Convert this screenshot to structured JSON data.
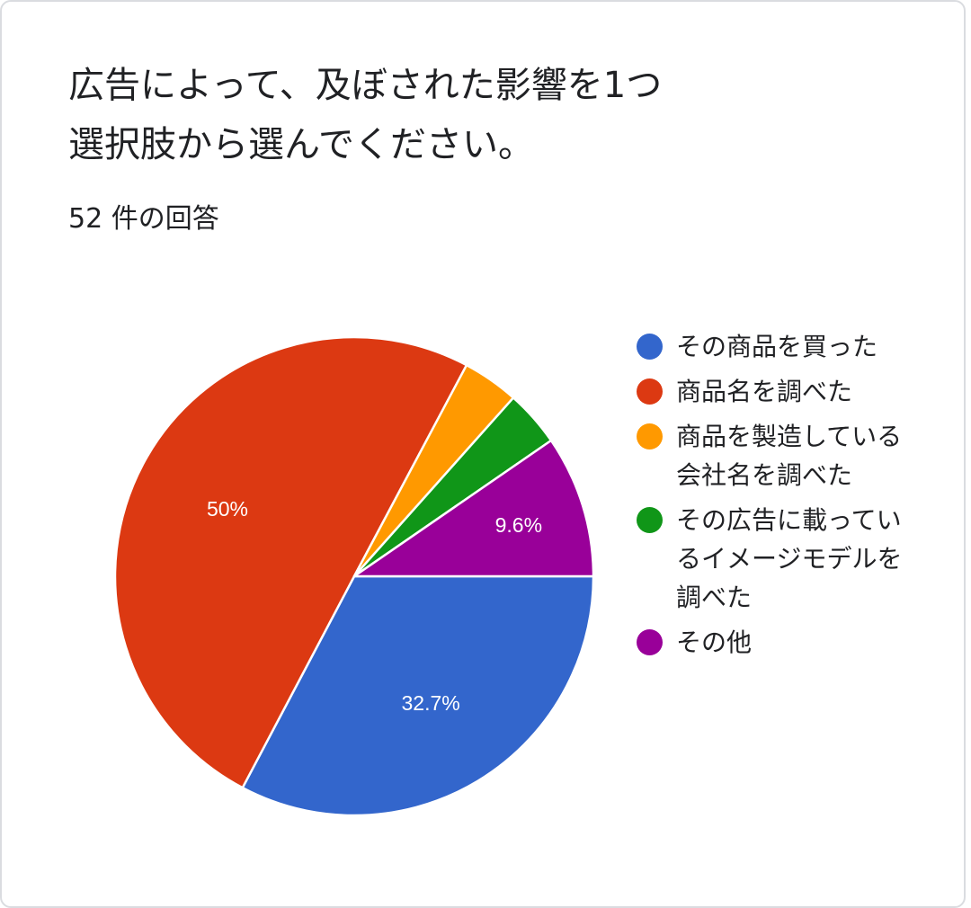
{
  "question": {
    "title_line1": "広告によって、及ぼされた影響を1つ",
    "title_line2": "選択肢から選んでください。",
    "response_count": "52 件の回答"
  },
  "chart_data": {
    "type": "pie",
    "total_responses": 52,
    "slices": [
      {
        "label": "その商品を買った",
        "value": 32.7,
        "data_label": "32.7%",
        "color": "#3366cc"
      },
      {
        "label": "商品名を調べた",
        "value": 50.0,
        "data_label": "50%",
        "color": "#dc3912"
      },
      {
        "label": "商品を製造している会社名を調べた",
        "value": 3.8,
        "data_label": "",
        "color": "#ff9900"
      },
      {
        "label": "その広告に載っているイメージモデルを調べた",
        "value": 3.8,
        "data_label": "",
        "color": "#109618"
      },
      {
        "label": "その他",
        "value": 9.6,
        "data_label": "9.6%",
        "color": "#990099"
      }
    ],
    "legend_position": "right",
    "start_direction": "east-clockwise"
  }
}
